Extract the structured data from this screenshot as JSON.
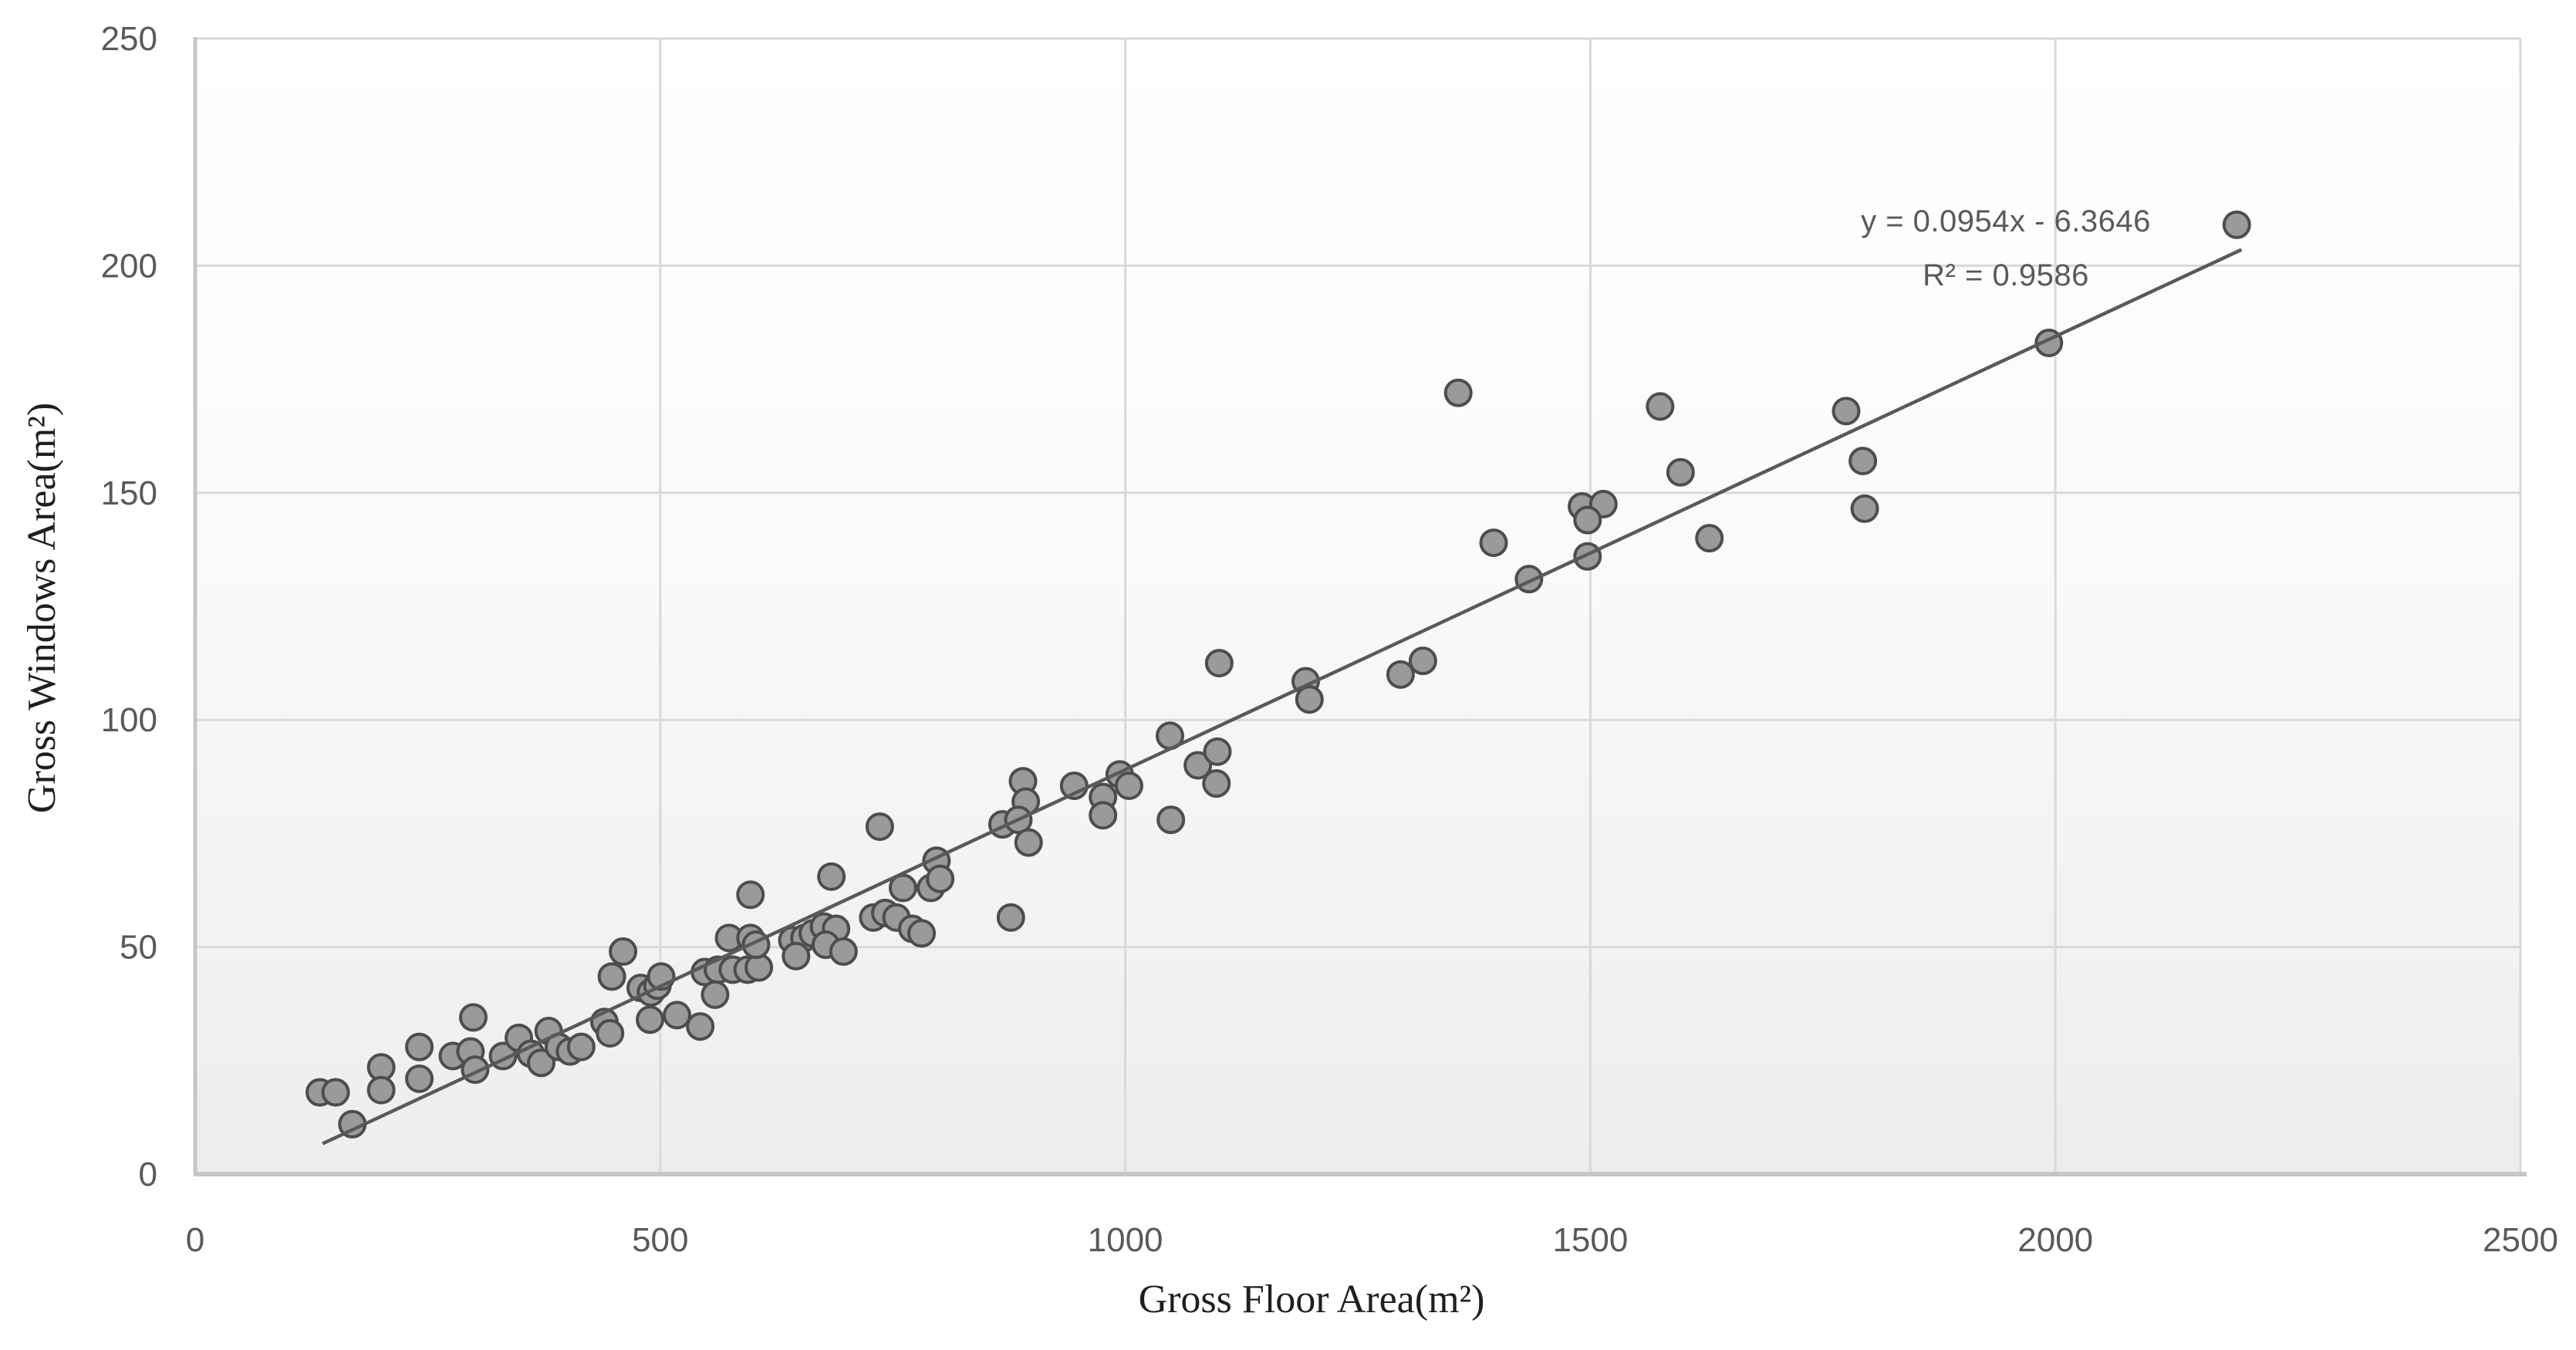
{
  "chart_data": {
    "type": "scatter",
    "title": "",
    "xlabel": "Gross Floor Area(m²)",
    "ylabel": "Gross Windows Area(m²)",
    "xlim": [
      0,
      2500
    ],
    "ylim": [
      0,
      250
    ],
    "xticks": [
      0,
      500,
      1000,
      1500,
      2000,
      2500
    ],
    "yticks": [
      0,
      50,
      100,
      150,
      200,
      250
    ],
    "grid": true,
    "legend_position": "none",
    "trendline": {
      "slope": 0.0954,
      "intercept": -6.3646,
      "x_start": 137,
      "x_end": 2200,
      "label_line1": "y = 0.0954x - 6.3646",
      "label_line2": "R² = 0.9586"
    },
    "points": [
      [
        134,
        18
      ],
      [
        151,
        18
      ],
      [
        169,
        11
      ],
      [
        200,
        23.5
      ],
      [
        200,
        18.5
      ],
      [
        241,
        28
      ],
      [
        241,
        21
      ],
      [
        277,
        26
      ],
      [
        296,
        27
      ],
      [
        301,
        23
      ],
      [
        299,
        34.5
      ],
      [
        331,
        26
      ],
      [
        348,
        30
      ],
      [
        361,
        26.5
      ],
      [
        372,
        24.5
      ],
      [
        380,
        31.5
      ],
      [
        391,
        28
      ],
      [
        403,
        27
      ],
      [
        415,
        28
      ],
      [
        440,
        33.5
      ],
      [
        446,
        31
      ],
      [
        448,
        43.5
      ],
      [
        460,
        49
      ],
      [
        479,
        41
      ],
      [
        490,
        40
      ],
      [
        497,
        41.5
      ],
      [
        501,
        43.5
      ],
      [
        489,
        34
      ],
      [
        518,
        35
      ],
      [
        543,
        32.5
      ],
      [
        548,
        44.5
      ],
      [
        562,
        45
      ],
      [
        578,
        45
      ],
      [
        594,
        45
      ],
      [
        606,
        45.5
      ],
      [
        559,
        39.5
      ],
      [
        574,
        52
      ],
      [
        597,
        52
      ],
      [
        603,
        50.5
      ],
      [
        597,
        61.5
      ],
      [
        642,
        51.5
      ],
      [
        655,
        52
      ],
      [
        664,
        53
      ],
      [
        646,
        48
      ],
      [
        676,
        54.5
      ],
      [
        689,
        54
      ],
      [
        678,
        50.5
      ],
      [
        697,
        49
      ],
      [
        729,
        56.5
      ],
      [
        742,
        57.5
      ],
      [
        754,
        56.5
      ],
      [
        771,
        54
      ],
      [
        781,
        53
      ],
      [
        736,
        76.5
      ],
      [
        761,
        63
      ],
      [
        791,
        63
      ],
      [
        797,
        69
      ],
      [
        801,
        65
      ],
      [
        684,
        65.5
      ],
      [
        868,
        77
      ],
      [
        877,
        56.5
      ],
      [
        890,
        86.5
      ],
      [
        893,
        82
      ],
      [
        885,
        78
      ],
      [
        896,
        73
      ],
      [
        945,
        85.5
      ],
      [
        976,
        83
      ],
      [
        976,
        79
      ],
      [
        994,
        88
      ],
      [
        1004,
        85.5
      ],
      [
        1048,
        96.5
      ],
      [
        1049,
        78
      ],
      [
        1078,
        90
      ],
      [
        1098,
        86
      ],
      [
        1099,
        93
      ],
      [
        1101,
        112.5
      ],
      [
        1194,
        108.5
      ],
      [
        1198,
        104.5
      ],
      [
        1296,
        110
      ],
      [
        1320,
        113
      ],
      [
        1358,
        172
      ],
      [
        1396,
        139
      ],
      [
        1434,
        131
      ],
      [
        1491,
        147
      ],
      [
        1514,
        147.5
      ],
      [
        1497,
        144
      ],
      [
        1497,
        136
      ],
      [
        1575,
        169
      ],
      [
        1597,
        154.5
      ],
      [
        1628,
        140
      ],
      [
        1775,
        168
      ],
      [
        1793,
        157
      ],
      [
        1795,
        146.5
      ],
      [
        1993,
        183
      ],
      [
        2195,
        209
      ]
    ]
  },
  "colors": {
    "marker_fill": "#9A9A9A",
    "marker_stroke": "#4D4D4D",
    "gridline": "#D9D9D9",
    "axis_line": "#C6C6C6",
    "trendline": "#595959",
    "tick_label": "#595959",
    "axis_title": "#1F1F1F",
    "equation_text": "#595959",
    "plot_bg_top": "#FFFFFF",
    "plot_bg_bottom": "#EDEDED"
  }
}
